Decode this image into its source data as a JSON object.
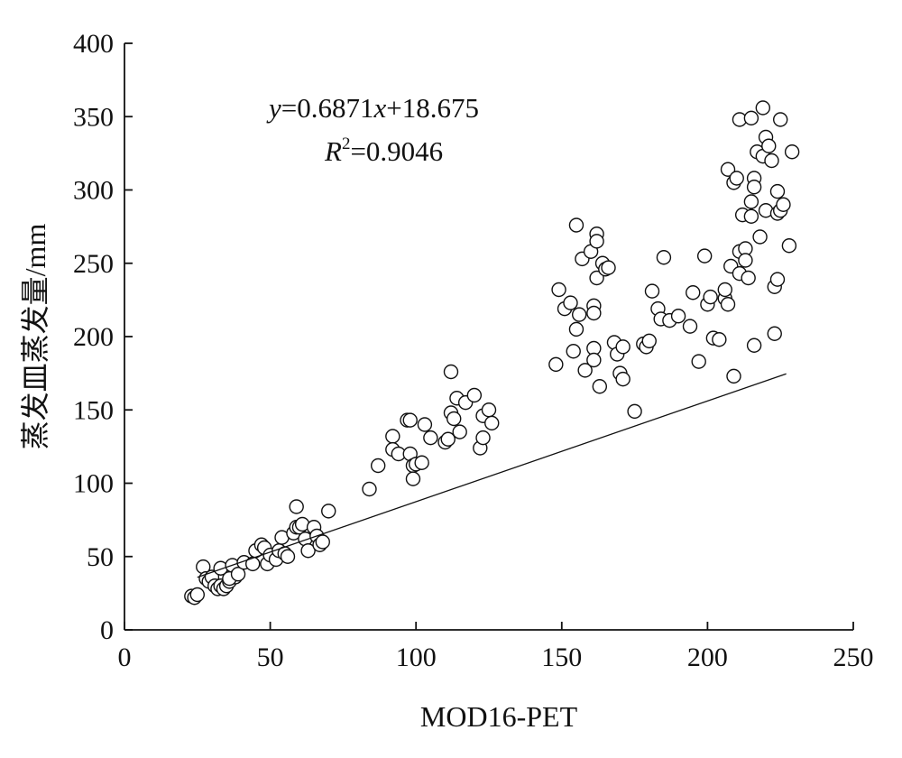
{
  "chart_data": {
    "type": "scatter",
    "xlabel": "MOD16-PET",
    "ylabel": "蒸发皿蒸发量/mm",
    "xlim": [
      0,
      250
    ],
    "ylim": [
      0,
      400
    ],
    "x_ticks": [
      "0",
      "50",
      "100",
      "150",
      "200",
      "250"
    ],
    "y_ticks": [
      "0",
      "50",
      "100",
      "150",
      "200",
      "250",
      "300",
      "350",
      "400"
    ],
    "grid": false,
    "annotations": {
      "equation": {
        "y": "y",
        "eq_a": "=0.6871",
        "x": "x",
        "eq_b": "+18.675"
      },
      "r_squared": {
        "r": "R",
        "sup": "2",
        "value": "=0.9046"
      }
    },
    "fit_line": {
      "slope": 0.6871,
      "intercept": 18.675,
      "x_range": [
        25,
        227
      ]
    },
    "points": [
      [
        23,
        23
      ],
      [
        24,
        22
      ],
      [
        25,
        24
      ],
      [
        27,
        43
      ],
      [
        28,
        35
      ],
      [
        29,
        33
      ],
      [
        30,
        36
      ],
      [
        31,
        30
      ],
      [
        32,
        28
      ],
      [
        33,
        42
      ],
      [
        33,
        30
      ],
      [
        34,
        28
      ],
      [
        35,
        30
      ],
      [
        36,
        33
      ],
      [
        37,
        44
      ],
      [
        38,
        36
      ],
      [
        36,
        35
      ],
      [
        39,
        38
      ],
      [
        41,
        46
      ],
      [
        44,
        45
      ],
      [
        45,
        54
      ],
      [
        47,
        58
      ],
      [
        48,
        56
      ],
      [
        49,
        45
      ],
      [
        50,
        51
      ],
      [
        52,
        48
      ],
      [
        53,
        54
      ],
      [
        54,
        63
      ],
      [
        55,
        52
      ],
      [
        56,
        50
      ],
      [
        58,
        66
      ],
      [
        59,
        70
      ],
      [
        59,
        84
      ],
      [
        60,
        70
      ],
      [
        61,
        72
      ],
      [
        62,
        62
      ],
      [
        63,
        54
      ],
      [
        65,
        70
      ],
      [
        66,
        64
      ],
      [
        67,
        58
      ],
      [
        68,
        60
      ],
      [
        70,
        81
      ],
      [
        84,
        96
      ],
      [
        87,
        112
      ],
      [
        92,
        132
      ],
      [
        92,
        123
      ],
      [
        94,
        120
      ],
      [
        97,
        143
      ],
      [
        98,
        143
      ],
      [
        98,
        120
      ],
      [
        99,
        112
      ],
      [
        99,
        103
      ],
      [
        100,
        113
      ],
      [
        102,
        114
      ],
      [
        103,
        140
      ],
      [
        105,
        131
      ],
      [
        110,
        128
      ],
      [
        111,
        130
      ],
      [
        112,
        176
      ],
      [
        112,
        148
      ],
      [
        113,
        144
      ],
      [
        114,
        158
      ],
      [
        115,
        135
      ],
      [
        117,
        155
      ],
      [
        120,
        160
      ],
      [
        122,
        124
      ],
      [
        123,
        131
      ],
      [
        123,
        146
      ],
      [
        125,
        150
      ],
      [
        126,
        141
      ],
      [
        148,
        181
      ],
      [
        149,
        232
      ],
      [
        151,
        219
      ],
      [
        153,
        223
      ],
      [
        154,
        190
      ],
      [
        155,
        276
      ],
      [
        155,
        205
      ],
      [
        156,
        215
      ],
      [
        157,
        253
      ],
      [
        158,
        177
      ],
      [
        160,
        258
      ],
      [
        161,
        192
      ],
      [
        161,
        184
      ],
      [
        161,
        221
      ],
      [
        161,
        216
      ],
      [
        162,
        270
      ],
      [
        162,
        265
      ],
      [
        162,
        240
      ],
      [
        163,
        166
      ],
      [
        164,
        250
      ],
      [
        165,
        246
      ],
      [
        166,
        247
      ],
      [
        168,
        196
      ],
      [
        169,
        188
      ],
      [
        170,
        175
      ],
      [
        171,
        193
      ],
      [
        171,
        171
      ],
      [
        175,
        149
      ],
      [
        178,
        195
      ],
      [
        179,
        193
      ],
      [
        180,
        197
      ],
      [
        181,
        231
      ],
      [
        183,
        219
      ],
      [
        184,
        212
      ],
      [
        185,
        254
      ],
      [
        187,
        211
      ],
      [
        190,
        214
      ],
      [
        194,
        207
      ],
      [
        195,
        230
      ],
      [
        197,
        183
      ],
      [
        199,
        255
      ],
      [
        200,
        222
      ],
      [
        201,
        227
      ],
      [
        202,
        199
      ],
      [
        204,
        198
      ],
      [
        206,
        226
      ],
      [
        206,
        232
      ],
      [
        207,
        222
      ],
      [
        207,
        314
      ],
      [
        208,
        248
      ],
      [
        209,
        173
      ],
      [
        209,
        305
      ],
      [
        210,
        308
      ],
      [
        211,
        348
      ],
      [
        211,
        258
      ],
      [
        211,
        243
      ],
      [
        212,
        283
      ],
      [
        213,
        260
      ],
      [
        213,
        252
      ],
      [
        214,
        240
      ],
      [
        215,
        349
      ],
      [
        215,
        292
      ],
      [
        215,
        282
      ],
      [
        216,
        308
      ],
      [
        216,
        302
      ],
      [
        216,
        194
      ],
      [
        217,
        326
      ],
      [
        218,
        268
      ],
      [
        219,
        356
      ],
      [
        219,
        323
      ],
      [
        220,
        286
      ],
      [
        220,
        336
      ],
      [
        221,
        330
      ],
      [
        222,
        320
      ],
      [
        223,
        234
      ],
      [
        223,
        202
      ],
      [
        224,
        299
      ],
      [
        224,
        284
      ],
      [
        224,
        239
      ],
      [
        225,
        286
      ],
      [
        225,
        348
      ],
      [
        226,
        290
      ],
      [
        228,
        262
      ],
      [
        229,
        326
      ]
    ]
  }
}
